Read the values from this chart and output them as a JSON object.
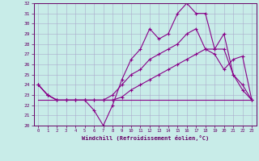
{
  "xlabel": "Windchill (Refroidissement éolien,°C)",
  "xlim": [
    -0.5,
    23.5
  ],
  "ylim": [
    20,
    32
  ],
  "xticks": [
    0,
    1,
    2,
    3,
    4,
    5,
    6,
    7,
    8,
    9,
    10,
    11,
    12,
    13,
    14,
    15,
    16,
    17,
    18,
    19,
    20,
    21,
    22,
    23
  ],
  "yticks": [
    20,
    21,
    22,
    23,
    24,
    25,
    26,
    27,
    28,
    29,
    30,
    31,
    32
  ],
  "bg_color": "#c8ece8",
  "line_color": "#880088",
  "grid_color": "#aaaacc",
  "line1_x": [
    0,
    1,
    2,
    3,
    4,
    5,
    6,
    7,
    8,
    9,
    10,
    11,
    12,
    13,
    14,
    15,
    16,
    17,
    18,
    19,
    20,
    21,
    22,
    23
  ],
  "line1_y": [
    24,
    23,
    22.5,
    22.5,
    22.5,
    22.5,
    21.5,
    20.0,
    22.0,
    24.5,
    26.5,
    27.5,
    29.5,
    28.5,
    29.0,
    31.0,
    32.0,
    31.0,
    31.0,
    27.5,
    29.0,
    25.0,
    23.5,
    22.5
  ],
  "line2_x": [
    0,
    23
  ],
  "line2_y": [
    22.5,
    22.5
  ],
  "line3_x": [
    0,
    1,
    2,
    3,
    4,
    5,
    6,
    7,
    8,
    9,
    10,
    11,
    12,
    13,
    14,
    15,
    16,
    17,
    18,
    19,
    20,
    21,
    22,
    23
  ],
  "line3_y": [
    24,
    23,
    22.5,
    22.5,
    22.5,
    22.5,
    22.5,
    22.5,
    23.0,
    24.0,
    25.0,
    25.5,
    26.5,
    27.0,
    27.5,
    28.0,
    29.0,
    29.5,
    27.5,
    27.5,
    27.5,
    25.0,
    24.0,
    22.5
  ],
  "line4_x": [
    0,
    1,
    2,
    3,
    4,
    5,
    6,
    7,
    8,
    9,
    10,
    11,
    12,
    13,
    14,
    15,
    16,
    17,
    18,
    19,
    20,
    21,
    22,
    23
  ],
  "line4_y": [
    24,
    23,
    22.5,
    22.5,
    22.5,
    22.5,
    22.5,
    22.5,
    22.5,
    22.8,
    23.5,
    24.0,
    24.5,
    25.0,
    25.5,
    26.0,
    26.5,
    27.0,
    27.5,
    27.0,
    25.5,
    26.5,
    26.8,
    22.5
  ],
  "figsize": [
    3.2,
    2.0
  ],
  "dpi": 100
}
